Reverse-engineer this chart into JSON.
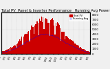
{
  "title": "Total PV  Panel & Inverter Performance   Running Avg Power Output",
  "bg_color": "#f0f0f0",
  "bar_color": "#cc0000",
  "line_color": "#0000ff",
  "grid_color": "#aaaaaa",
  "num_bars": 105,
  "peak_index": 52,
  "ylim": [
    0,
    8500
  ],
  "ylabel_right_vals": [
    0,
    1000,
    2000,
    3000,
    4000,
    5000,
    6000,
    7000,
    8000
  ],
  "title_fontsize": 3.8,
  "tick_fontsize": 2.8,
  "legend_fontsize": 2.5
}
